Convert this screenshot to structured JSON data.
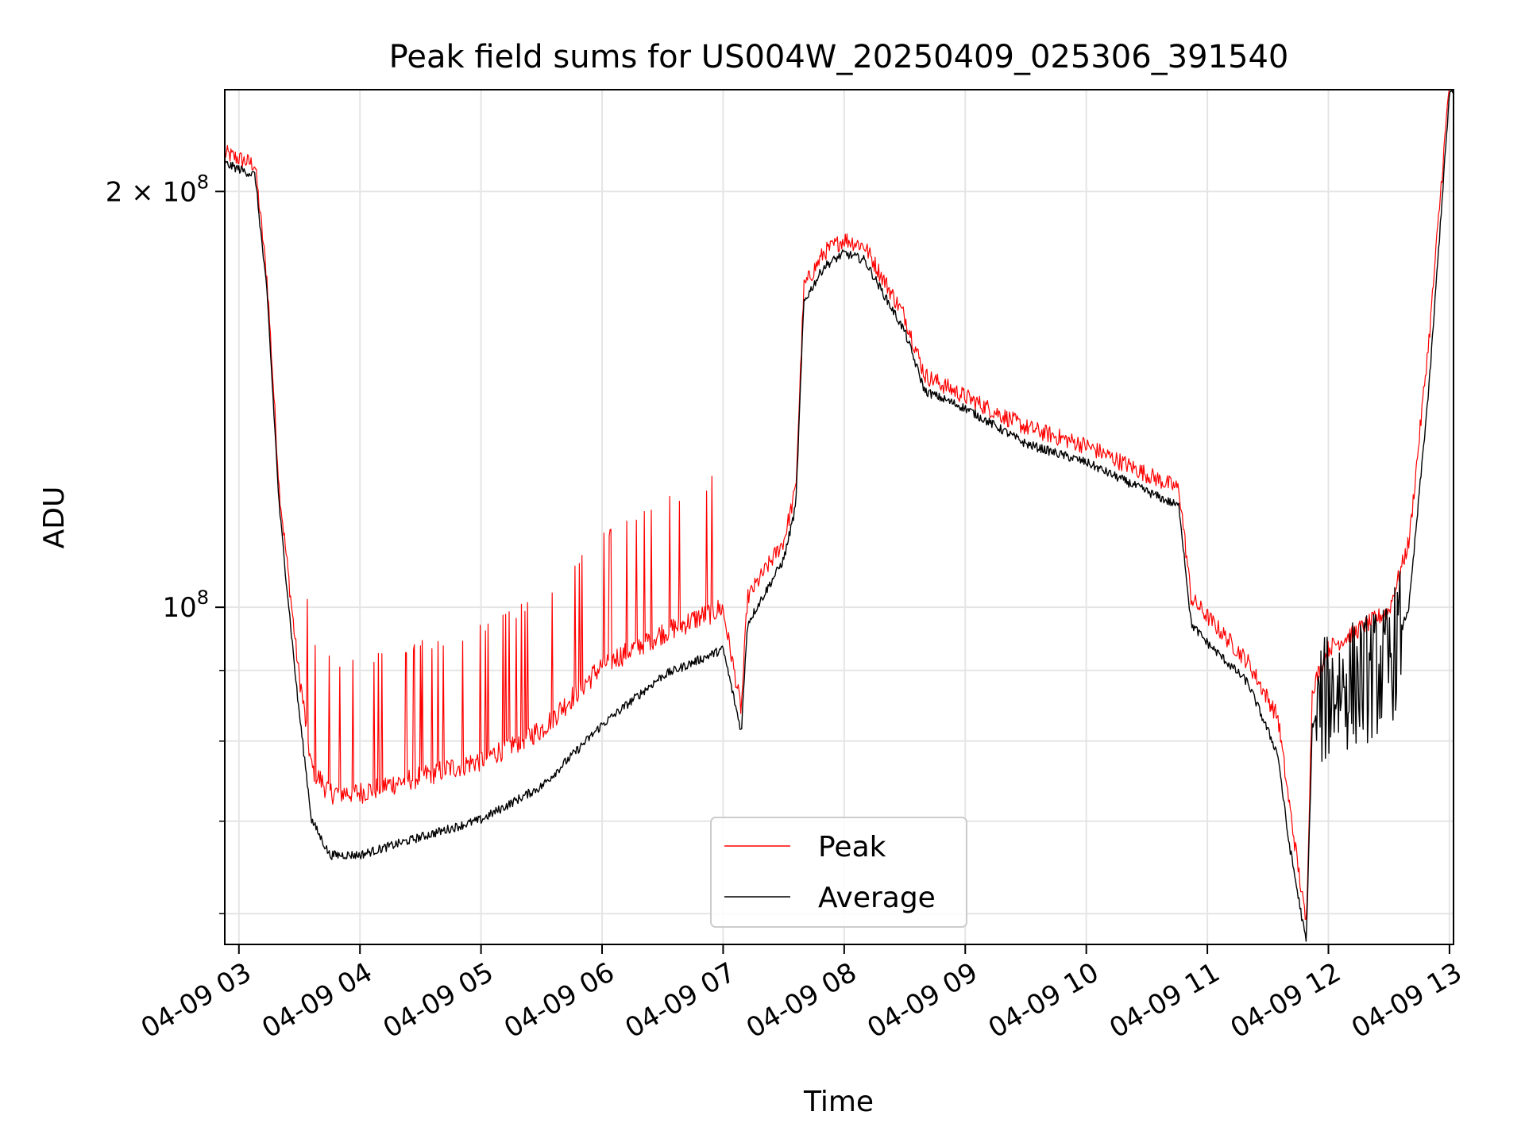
{
  "chart_data": {
    "type": "line",
    "title": "Peak field sums for US004W_20250409_025306_391540",
    "xlabel": "Time",
    "ylabel": "ADU",
    "y_scale": "log",
    "ylim": [
      57000000,
      237000000
    ],
    "x_range_hours": [
      "04-09 02:53",
      "04-09 13:02"
    ],
    "grid": true,
    "legend_position": "lower center",
    "x_tick_labels": [
      "04-09 03",
      "04-09 04",
      "04-09 05",
      "04-09 06",
      "04-09 07",
      "04-09 08",
      "04-09 09",
      "04-09 10",
      "04-09 11",
      "04-09 12",
      "04-09 13"
    ],
    "x_tick_hours": [
      3,
      4,
      5,
      6,
      7,
      8,
      9,
      10,
      11,
      12,
      13
    ],
    "y_major_ticks": [
      {
        "value": 100000000,
        "base": "10",
        "exp": "8",
        "mult": ""
      },
      {
        "value": 200000000,
        "base": "10",
        "exp": "8",
        "mult": "2 × "
      }
    ],
    "y_minor_ticks": [
      60000000,
      70000000,
      80000000,
      90000000
    ],
    "series": [
      {
        "name": "Peak",
        "color": "#ff0000",
        "x": [
          "02:53",
          "03:08",
          "03:14",
          "03:20",
          "03:29",
          "03:36",
          "03:45",
          "04:00",
          "04:30",
          "05:00",
          "05:30",
          "06:00",
          "06:30",
          "07:00",
          "07:09",
          "07:12",
          "07:30",
          "07:36",
          "07:40",
          "07:50",
          "08:00",
          "08:10",
          "08:30",
          "08:40",
          "09:00",
          "09:30",
          "10:00",
          "10:30",
          "10:46",
          "10:52",
          "11:00",
          "11:20",
          "11:35",
          "11:40",
          "11:49",
          "11:52",
          "12:00",
          "12:30",
          "12:40",
          "12:50",
          "13:00"
        ],
        "y": [
          210000000,
          206000000,
          170000000,
          120000000,
          90000000,
          75000000,
          72000000,
          72000000,
          74000000,
          76000000,
          80000000,
          89000000,
          94000000,
          98000000,
          83000000,
          100000000,
          110000000,
          120000000,
          168000000,
          178000000,
          182000000,
          180000000,
          160000000,
          145000000,
          140000000,
          133000000,
          129000000,
          123000000,
          120000000,
          100000000,
          97000000,
          90000000,
          82000000,
          72000000,
          58000000,
          86000000,
          92000000,
          98000000,
          110000000,
          155000000,
          237000000
        ]
      },
      {
        "name": "Average",
        "color": "#000000",
        "x": [
          "02:53",
          "03:08",
          "03:14",
          "03:20",
          "03:29",
          "03:36",
          "03:45",
          "04:00",
          "04:30",
          "05:00",
          "05:30",
          "06:00",
          "06:30",
          "07:00",
          "07:09",
          "07:12",
          "07:30",
          "07:36",
          "07:40",
          "07:50",
          "08:00",
          "08:10",
          "08:30",
          "08:40",
          "09:00",
          "09:30",
          "10:00",
          "10:30",
          "10:46",
          "10:52",
          "11:00",
          "11:20",
          "11:35",
          "11:40",
          "11:49",
          "11:52",
          "12:00",
          "12:30",
          "12:40",
          "12:50",
          "13:00"
        ],
        "y": [
          209000000,
          205000000,
          168000000,
          118000000,
          86000000,
          70000000,
          66000000,
          66000000,
          68000000,
          70000000,
          74000000,
          82000000,
          89000000,
          93000000,
          81000000,
          97000000,
          108000000,
          118000000,
          166000000,
          176000000,
          180000000,
          178000000,
          158000000,
          143000000,
          139000000,
          131000000,
          127000000,
          121000000,
          118000000,
          97000000,
          94000000,
          88000000,
          78000000,
          68000000,
          57000000,
          82000000,
          86000000,
          90000000,
          100000000,
          145000000,
          235000000
        ]
      }
    ]
  }
}
